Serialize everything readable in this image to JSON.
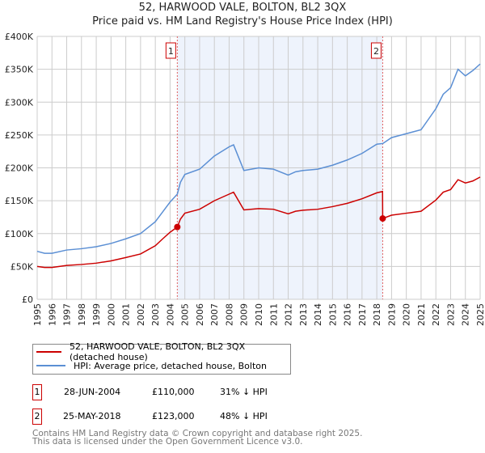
{
  "chart_data": {
    "type": "line",
    "title": "52, HARWOOD VALE, BOLTON, BL2 3QX",
    "subtitle": "Price paid vs. HM Land Registry's House Price Index (HPI)",
    "xlim": [
      1995,
      2025
    ],
    "ylim": [
      0,
      400000
    ],
    "y_ticks": [
      0,
      50000,
      100000,
      150000,
      200000,
      250000,
      300000,
      350000,
      400000
    ],
    "y_tick_labels": [
      "£0",
      "£50K",
      "£100K",
      "£150K",
      "£200K",
      "£250K",
      "£300K",
      "£350K",
      "£400K"
    ],
    "x_tick_labels": [
      "1995",
      "1996",
      "1997",
      "1998",
      "1999",
      "2000",
      "2001",
      "2002",
      "2003",
      "2004",
      "2005",
      "2006",
      "2007",
      "2008",
      "2009",
      "2010",
      "2011",
      "2012",
      "2013",
      "2014",
      "2015",
      "2016",
      "2017",
      "2018",
      "2019",
      "2020",
      "2021",
      "2022",
      "2023",
      "2024",
      "2025"
    ],
    "grid": true,
    "series": [
      {
        "name": "52, HARWOOD VALE, BOLTON, BL2 3QX (detached house)",
        "color": "#cc0000",
        "x": [
          1995,
          1995.5,
          1996,
          1997,
          1998,
          1999,
          2000,
          2001,
          2002,
          2003,
          2003.5,
          2004,
          2004.49,
          2004.7,
          2005,
          2006,
          2007,
          2008,
          2008.3,
          2009,
          2010,
          2011,
          2012,
          2012.5,
          2013,
          2014,
          2015,
          2016,
          2017,
          2018,
          2018.39,
          2018.4,
          2019,
          2020,
          2021,
          2022,
          2022.5,
          2023,
          2023.5,
          2024,
          2024.5,
          2025
        ],
        "y": [
          50000,
          48500,
          48500,
          51500,
          53000,
          55000,
          58500,
          63500,
          69000,
          81500,
          92000,
          102000,
          110000,
          122000,
          131000,
          137000,
          150000,
          160000,
          163000,
          136000,
          138000,
          137000,
          130000,
          134000,
          135500,
          137000,
          141000,
          146000,
          153000,
          162000,
          164000,
          123000,
          128000,
          131000,
          134000,
          151000,
          163000,
          167000,
          182000,
          177000,
          180000,
          186000
        ]
      },
      {
        "name": "HPI: Average price, detached house, Bolton",
        "color": "#5b8fd4",
        "x": [
          1995,
          1995.5,
          1996,
          1997,
          1998,
          1999,
          2000,
          2001,
          2002,
          2003,
          2003.5,
          2004,
          2004.49,
          2004.7,
          2005,
          2006,
          2007,
          2008,
          2008.3,
          2009,
          2010,
          2011,
          2012,
          2012.5,
          2013,
          2014,
          2015,
          2016,
          2017,
          2018,
          2018.39,
          2018.4,
          2019,
          2020,
          2021,
          2022,
          2022.5,
          2023,
          2023.5,
          2024,
          2024.5,
          2025
        ],
        "y": [
          73000,
          70000,
          70000,
          75000,
          77000,
          80000,
          85000,
          92000,
          100000,
          118000,
          133000,
          148000,
          160000,
          178000,
          190000,
          198000,
          218000,
          232000,
          235000,
          196000,
          200000,
          198000,
          189000,
          194000,
          196000,
          198000,
          204000,
          212000,
          222000,
          236000,
          237000,
          237000,
          246000,
          252000,
          258000,
          290000,
          312000,
          322000,
          350000,
          340000,
          348000,
          358000
        ]
      }
    ],
    "sales": [
      {
        "label": "1",
        "x": 2004.49,
        "y": 110000,
        "date": "28-JUN-2004",
        "price": "£110,000",
        "hpi": "31% ↓ HPI"
      },
      {
        "label": "2",
        "x": 2018.4,
        "y": 123000,
        "date": "25-MAY-2018",
        "price": "£123,000",
        "hpi": "48% ↓ HPI"
      }
    ],
    "shade_color": "#eef3fc"
  },
  "legend": [
    "52, HARWOOD VALE, BOLTON, BL2 3QX (detached house)",
    "HPI: Average price, detached house, Bolton"
  ],
  "footer": [
    "Contains HM Land Registry data © Crown copyright and database right 2025.",
    "This data is licensed under the Open Government Licence v3.0."
  ]
}
